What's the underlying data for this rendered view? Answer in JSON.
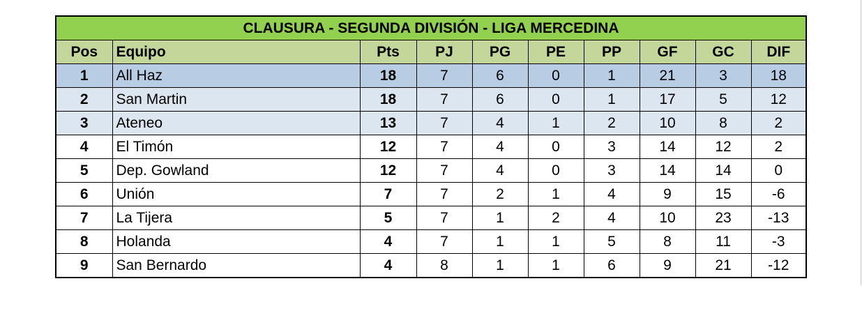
{
  "title": "CLAUSURA - SEGUNDA DIVISIÓN - LIGA MERCEDINA",
  "colors": {
    "title_bg": "#92d050",
    "header_bg": "#c4d79b",
    "first_place_bg": "#b8cce4",
    "top_three_bg": "#dce6f1"
  },
  "columns": [
    "Pos",
    "Equipo",
    "Pts",
    "PJ",
    "PG",
    "PE",
    "PP",
    "GF",
    "GC",
    "DIF"
  ],
  "rows": [
    [
      "1",
      "All Haz",
      "18",
      "7",
      "6",
      "0",
      "1",
      "21",
      "3",
      "18"
    ],
    [
      "2",
      "San Martin",
      "18",
      "7",
      "6",
      "0",
      "1",
      "17",
      "5",
      "12"
    ],
    [
      "3",
      "Ateneo",
      "13",
      "7",
      "4",
      "1",
      "2",
      "10",
      "8",
      "2"
    ],
    [
      "4",
      "El Timón",
      "12",
      "7",
      "4",
      "0",
      "3",
      "14",
      "12",
      "2"
    ],
    [
      "5",
      "Dep. Gowland",
      "12",
      "7",
      "4",
      "0",
      "3",
      "14",
      "14",
      "0"
    ],
    [
      "6",
      "Unión",
      "7",
      "7",
      "2",
      "1",
      "4",
      "9",
      "15",
      "-6"
    ],
    [
      "7",
      "La Tijera",
      "5",
      "7",
      "1",
      "2",
      "4",
      "10",
      "23",
      "-13"
    ],
    [
      "8",
      "Holanda",
      "4",
      "7",
      "1",
      "1",
      "5",
      "8",
      "11",
      "-3"
    ],
    [
      "9",
      "San Bernardo",
      "4",
      "8",
      "1",
      "1",
      "6",
      "9",
      "21",
      "-12"
    ]
  ]
}
